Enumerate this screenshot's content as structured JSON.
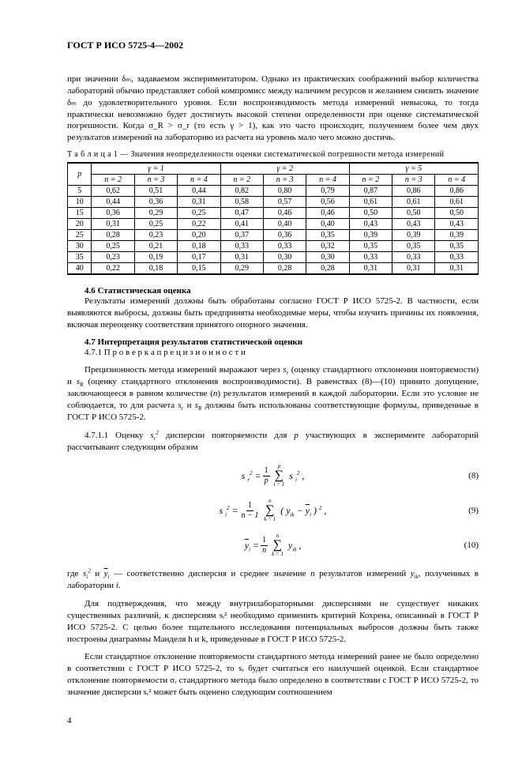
{
  "header": {
    "code": "ГОСТ Р ИСО 5725-4—2002"
  },
  "para1": "при значении δₘ, задаваемом экспериментатором. Однако из практических соображений выбор количества лабораторий обычно представляет собой компромисс между наличием ресурсов и желанием снизить значение δₘ до удовлетворительного уровня. Если воспроизводимость метода измерений невысока, то тогда практически невозможно будет достигнуть высокой степени определенности при оценке систематической погрешности. Когда σ_R > σ_r (то есть γ > 1), как это часто происходит, получением более чем двух результатов измерений на лабораторию из расчета на уровень мало чего можно достичь.",
  "tableCaption": "Т а б л и ц а   1 — Значения неопределенности оценки систематической погрешности метода измерений",
  "table": {
    "gammaGroups": [
      "γ = 1",
      "γ = 2",
      "γ = 5"
    ],
    "nHeaders": [
      "n = 2",
      "n = 3",
      "n = 4",
      "n = 2",
      "n = 3",
      "n = 4",
      "n = 2",
      "n = 3",
      "n = 4"
    ],
    "pCol": "p",
    "rows": [
      {
        "p": "5",
        "v": [
          "0,62",
          "0,51",
          "0,44",
          "0,82",
          "0,80",
          "0,79",
          "0,87",
          "0,86",
          "0,86"
        ]
      },
      {
        "p": "10",
        "v": [
          "0,44",
          "0,36",
          "0,31",
          "0,58",
          "0,57",
          "0,56",
          "0,61",
          "0,61",
          "0,61"
        ]
      },
      {
        "p": "15",
        "v": [
          "0,36",
          "0,29",
          "0,25",
          "0,47",
          "0,46",
          "0,46",
          "0,50",
          "0,50",
          "0,50"
        ]
      },
      {
        "p": "20",
        "v": [
          "0,31",
          "0,25",
          "0,22",
          "0,41",
          "0,40",
          "0,40",
          "0,43",
          "0,43",
          "0,43"
        ]
      },
      {
        "p": "25",
        "v": [
          "0,28",
          "0,23",
          "0,20",
          "0,37",
          "0,36",
          "0,35",
          "0,39",
          "0,39",
          "0,39"
        ]
      },
      {
        "p": "30",
        "v": [
          "0,25",
          "0,21",
          "0,18",
          "0,33",
          "0,33",
          "0,32",
          "0,35",
          "0,35",
          "0,35"
        ]
      },
      {
        "p": "35",
        "v": [
          "0,23",
          "0,19",
          "0,17",
          "0,31",
          "0,30",
          "0,30",
          "0,33",
          "0,33",
          "0,33"
        ]
      },
      {
        "p": "40",
        "v": [
          "0,22",
          "0,18",
          "0,15",
          "0,29",
          "0,28",
          "0,28",
          "0,31",
          "0,31",
          "0,31"
        ]
      }
    ]
  },
  "sec46": {
    "title": "4.6 Статистическая оценка",
    "text": "Результаты измерений должны быть обработаны согласно ГОСТ Р ИСО 5725-2. В частности, если выявляются выбросы, должны быть предприняты необходимые меры, чтобы изучить причины их появления, включая переоценку соответствия принятого опорного значения."
  },
  "sec47": {
    "title": "4.7 Интерпретация результатов статистической оценки",
    "sub1": "4.7.1 П р о в е р к а   п р е ц и з и о н н о с т и",
    "text1a": "Прецизионность метода измерений выражают через ",
    "text1b": " (оценку стандартного отклонения повторяемости) и ",
    "text1c": " (оценку стандартного отклонения воспроизводимости). В равенствах (8)—(10) принято допущение, заключающееся в равном количестве (",
    "text1d": ") результатов измерений в каждой лаборатории. Если это условие не соблюдается, то для расчета ",
    "text1e": " и ",
    "text1f": " должны быть использованы соответствующие формулы, приведенные в ГОСТ Р ИСО 5725-2.",
    "sub2a": "4.7.1.1 Оценку ",
    "sub2b": " дисперсии повторяемости для ",
    "sub2c": " участвующих в эксперименте лабораторий рассчитывают следующим образом",
    "eq8num": "(8)",
    "eq9num": "(9)",
    "eq10num": "(10)",
    "text2a": "где ",
    "text2b": " и ",
    "text2c": " — соответственно дисперсия и среднее значение ",
    "text2d": " результатов измерений ",
    "text2e": ", полученных в лаборатории ",
    "text3": "Для подтверждения, что между внутрилабораторными дисперсиями не существует никаких существенных различий, к дисперсиям sᵢ² необходимо применить критерий Кохрена, описанный в ГОСТ Р ИСО 5725-2. С целью более тщательного исследования потенциальных выбросов должны быть также построены диаграммы Манделя h и k, приведенные в ГОСТ Р ИСО 5725-2.",
    "text4": "Если стандартное отклонение повторяемости стандартного метода измерений ранее не было определено в соответствии с ГОСТ Р ИСО 5725-2, то sᵣ будет считаться его наилучшей оценкой. Если стандартное отклонение повторяемости σᵣ стандартного метода было определено в соответствии с ГОСТ Р ИСО 5725-2, то значение дисперсии sᵣ² может быть оценено следующим соотношением"
  },
  "pageNum": "4"
}
